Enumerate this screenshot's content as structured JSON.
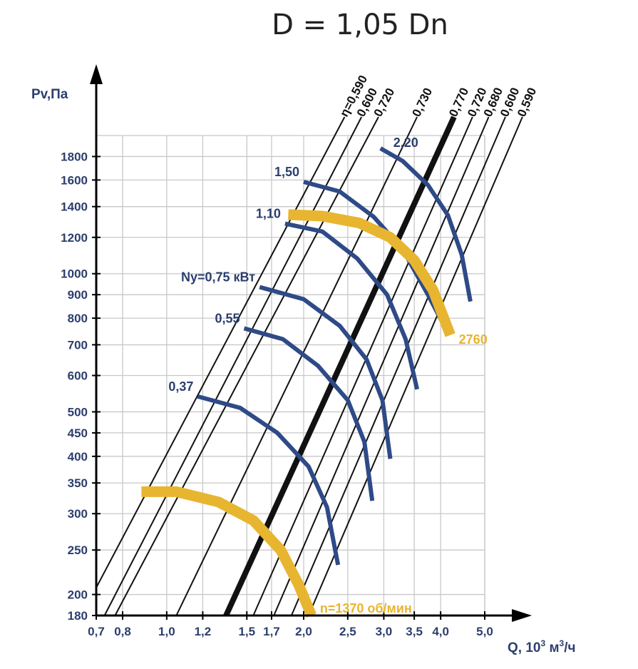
{
  "chart_data": {
    "type": "line",
    "title": "D = 1,05 Dn",
    "xlabel": "Q, 10",
    "xlabel_sup": "3",
    "xlabel_unit": " м",
    "xlabel_unit_sup": "3",
    "xlabel_tail": "/ч",
    "ylabel": "Pv,Па",
    "x_scale": "log",
    "y_scale": "log",
    "xlim": [
      0.7,
      5.0
    ],
    "ylim": [
      180,
      2000
    ],
    "x_ticks": [
      {
        "v": 0.7,
        "label": "0,7"
      },
      {
        "v": 0.8,
        "label": "0,8"
      },
      {
        "v": 1.0,
        "label": "1,0"
      },
      {
        "v": 1.2,
        "label": "1,2"
      },
      {
        "v": 1.5,
        "label": "1,5"
      },
      {
        "v": 1.7,
        "label": "1,7"
      },
      {
        "v": 2.0,
        "label": "2,0"
      },
      {
        "v": 2.5,
        "label": "2,5"
      },
      {
        "v": 3.0,
        "label": "3,0"
      },
      {
        "v": 3.5,
        "label": "3,5"
      },
      {
        "v": 4.0,
        "label": "4,0"
      },
      {
        "v": 5.0,
        "label": "5,0"
      }
    ],
    "y_ticks": [
      {
        "v": 180,
        "label": "180"
      },
      {
        "v": 200,
        "label": "200"
      },
      {
        "v": 250,
        "label": "250"
      },
      {
        "v": 300,
        "label": "300"
      },
      {
        "v": 350,
        "label": "350"
      },
      {
        "v": 400,
        "label": "400"
      },
      {
        "v": 450,
        "label": "450"
      },
      {
        "v": 500,
        "label": "500"
      },
      {
        "v": 600,
        "label": "600"
      },
      {
        "v": 700,
        "label": "700"
      },
      {
        "v": 800,
        "label": "800"
      },
      {
        "v": 900,
        "label": "900"
      },
      {
        "v": 1000,
        "label": "1000"
      },
      {
        "v": 1200,
        "label": "1200"
      },
      {
        "v": 1400,
        "label": "1400"
      },
      {
        "v": 1600,
        "label": "1600"
      },
      {
        "v": 1800,
        "label": "1800"
      }
    ],
    "grid": true,
    "efficiency_lines": [
      {
        "name": "η=0,590",
        "x": [
          0.7,
          2.46
        ],
        "y": [
          207,
          2195
        ]
      },
      {
        "name": "0,600",
        "x": [
          0.73,
          2.68
        ],
        "y": [
          180,
          2195
        ]
      },
      {
        "name": "0,720",
        "x": [
          0.77,
          2.92
        ],
        "y": [
          180,
          2195
        ]
      },
      {
        "name": "0,730",
        "x": [
          1.05,
          3.55
        ],
        "y": [
          180,
          2195
        ]
      },
      {
        "name": "0,770",
        "x": [
          1.35,
          4.28
        ],
        "y": [
          180,
          2195
        ],
        "bold": true
      },
      {
        "name": "0,720",
        "x": [
          1.55,
          4.7
        ],
        "y": [
          180,
          2195
        ]
      },
      {
        "name": "0,680",
        "x": [
          1.72,
          5.1
        ],
        "y": [
          180,
          2195
        ]
      },
      {
        "name": "0,600",
        "x": [
          1.88,
          5.55
        ],
        "y": [
          180,
          2195
        ]
      },
      {
        "name": "0,590",
        "x": [
          2.05,
          6.05
        ],
        "y": [
          180,
          2195
        ]
      }
    ],
    "speed_curves": [
      {
        "name": "n=1370 об/мин",
        "x": [
          0.88,
          1.05,
          1.3,
          1.55,
          1.78,
          1.95,
          2.08
        ],
        "y": [
          335,
          335,
          318,
          290,
          250,
          210,
          180
        ]
      },
      {
        "name": "2760",
        "x": [
          1.85,
          2.2,
          2.65,
          3.1,
          3.5,
          3.85,
          4.2
        ],
        "y": [
          1345,
          1335,
          1290,
          1200,
          1070,
          920,
          735
        ]
      }
    ],
    "power_curves": [
      {
        "name": "0,37",
        "x": [
          1.17,
          1.45,
          1.75,
          2.05,
          2.25,
          2.38
        ],
        "y": [
          540,
          510,
          450,
          380,
          310,
          232
        ]
      },
      {
        "name": "0,55",
        "x": [
          1.48,
          1.8,
          2.15,
          2.5,
          2.72,
          2.83
        ],
        "y": [
          760,
          720,
          630,
          530,
          430,
          320
        ]
      },
      {
        "name": "Ny=0,75 кВт",
        "x": [
          1.6,
          2.0,
          2.4,
          2.75,
          2.98,
          3.1
        ],
        "y": [
          935,
          880,
          770,
          650,
          530,
          395
        ]
      },
      {
        "name": "1,10",
        "x": [
          1.82,
          2.2,
          2.62,
          3.05,
          3.35,
          3.55
        ],
        "y": [
          1285,
          1235,
          1080,
          900,
          720,
          560
        ]
      },
      {
        "name": "1,50",
        "x": [
          2.0,
          2.4,
          2.85,
          3.3,
          3.75,
          4.1
        ],
        "y": [
          1585,
          1510,
          1330,
          1130,
          900,
          760
        ]
      },
      {
        "name": "2,20",
        "x": [
          2.95,
          3.3,
          3.75,
          4.15,
          4.45,
          4.65
        ],
        "y": [
          1875,
          1760,
          1560,
          1340,
          1100,
          870
        ]
      }
    ],
    "colors": {
      "grid": "#c8c8c8",
      "axis": "#000000",
      "efficiency": "#111111",
      "power": "#2e4a87",
      "speed": "#e8b530",
      "label": "#2b3e6e"
    }
  }
}
